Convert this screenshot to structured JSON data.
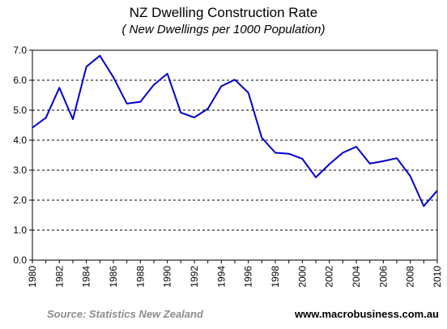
{
  "chart_data": {
    "type": "line",
    "title": "NZ Dwelling Construction Rate",
    "subtitle": "( New Dwellings per 1000 Population)",
    "xlabel": "",
    "ylabel": "",
    "xlim": [
      1980,
      2010
    ],
    "ylim": [
      0,
      7
    ],
    "yticks": [
      "0.0",
      "1.0",
      "2.0",
      "3.0",
      "4.0",
      "5.0",
      "6.0",
      "7.0"
    ],
    "xticks": [
      "1980",
      "1982",
      "1984",
      "1986",
      "1988",
      "1990",
      "1992",
      "1994",
      "1996",
      "1998",
      "2000",
      "2002",
      "2004",
      "2006",
      "2008",
      "2010"
    ],
    "grid": "horizontal dashed",
    "line_color": "#0000cc",
    "series": [
      {
        "x": [
          1980,
          1981,
          1982,
          1983,
          1984,
          1985,
          1986,
          1987,
          1988,
          1989,
          1990,
          1991,
          1992,
          1993,
          1994,
          1995,
          1996,
          1997,
          1998,
          1999,
          2000,
          2001,
          2002,
          2003,
          2004,
          2005,
          2006,
          2007,
          2008,
          2009,
          2010
        ],
        "values": [
          4.42,
          4.75,
          5.75,
          4.7,
          6.45,
          6.82,
          6.1,
          5.22,
          5.28,
          5.85,
          6.22,
          4.92,
          4.76,
          5.05,
          5.8,
          6.02,
          5.58,
          4.08,
          3.58,
          3.55,
          3.38,
          2.76,
          3.2,
          3.58,
          3.78,
          3.22,
          3.3,
          3.4,
          2.8,
          1.8,
          2.32
        ]
      }
    ]
  },
  "footer": {
    "source": "Source: Statistics New Zealand",
    "site": "www.macrobusiness.com.au"
  }
}
